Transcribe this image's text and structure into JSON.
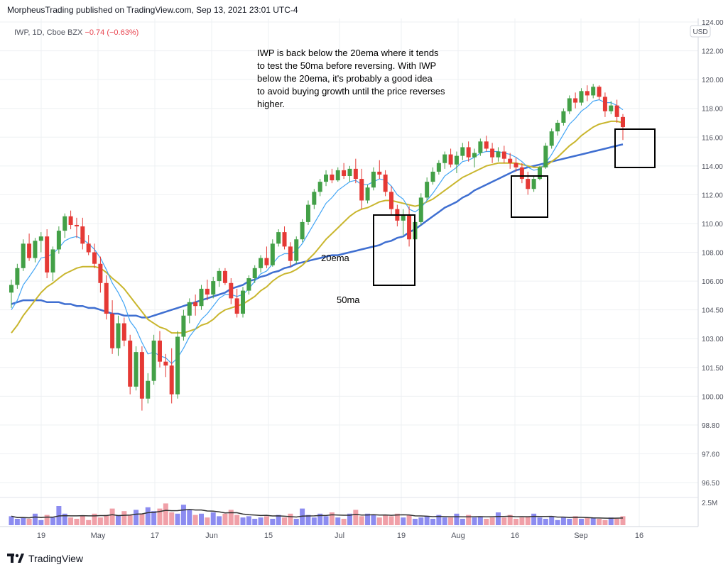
{
  "header": {
    "publisher_line": "MorpheusTrading published on TradingView.com, Sep 13, 2021 23:01 UTC-4"
  },
  "symbol": {
    "ticker_line": "IWP, 1D, Cboe BZX",
    "change": "−0.74 (−0.63%)"
  },
  "annotation": {
    "text": "IWP is back below the 20ema where it tends\nto test the 50ma before reversing.  With IWP\nbelow the 20ema, it's probably a good idea\nto avoid buying growth until the price reverses\nhigher."
  },
  "labels": {
    "ema20": "20ema",
    "ma50": "50ma"
  },
  "footer": {
    "brand": "TradingView"
  },
  "colors": {
    "up": "#43a047",
    "down": "#e53935",
    "ema_fast": "#42a5f5",
    "ema20": "#c9b62e",
    "ma50": "#3f6fd1",
    "vol_up": "#8c8cf0",
    "vol_down": "#f0a0a8",
    "grid": "#eef0f3"
  },
  "chart_data": {
    "type": "candlestick",
    "currency": "USD",
    "y_ticks": [
      "124.00",
      "122.00",
      "120.00",
      "118.00",
      "116.00",
      "114.00",
      "112.00",
      "110.00",
      "108.00",
      "106.00",
      "104.50",
      "103.00",
      "101.50",
      "100.00",
      "98.80",
      "97.60",
      "96.50"
    ],
    "y_tick_values": [
      124,
      122,
      120,
      118,
      116,
      114,
      112,
      110,
      108,
      106,
      104.5,
      103,
      101.5,
      100,
      98.8,
      97.6,
      96.5
    ],
    "x_ticks": [
      "19",
      "May",
      "17",
      "Jun",
      "15",
      "Jul",
      "19",
      "Aug",
      "16",
      "Sep",
      "16"
    ],
    "volume_tick": "2.5M",
    "candles": [
      [
        105.4,
        106.1,
        104.6,
        105.8
      ],
      [
        105.8,
        107.2,
        105.6,
        106.9
      ],
      [
        106.9,
        108.9,
        106.7,
        108.6
      ],
      [
        108.6,
        109.3,
        107.4,
        107.6
      ],
      [
        107.6,
        109.0,
        107.3,
        108.8
      ],
      [
        108.8,
        109.4,
        108.0,
        109.1
      ],
      [
        109.1,
        109.6,
        106.2,
        106.6
      ],
      [
        106.6,
        108.4,
        106.0,
        108.2
      ],
      [
        108.2,
        109.8,
        107.9,
        109.5
      ],
      [
        109.5,
        110.7,
        109.0,
        110.5
      ],
      [
        110.5,
        110.9,
        109.6,
        109.9
      ],
      [
        109.9,
        110.4,
        109.0,
        109.8
      ],
      [
        109.8,
        110.4,
        108.2,
        108.6
      ],
      [
        108.6,
        109.2,
        107.8,
        108.0
      ],
      [
        108.0,
        108.6,
        106.9,
        107.2
      ],
      [
        107.2,
        107.7,
        105.4,
        105.9
      ],
      [
        105.9,
        106.4,
        104.0,
        104.3
      ],
      [
        104.3,
        105.0,
        102.2,
        102.5
      ],
      [
        102.5,
        104.2,
        102.1,
        103.8
      ],
      [
        103.8,
        104.1,
        102.6,
        102.9
      ],
      [
        102.9,
        103.2,
        100.1,
        100.5
      ],
      [
        100.5,
        102.6,
        100.3,
        102.3
      ],
      [
        102.3,
        102.6,
        99.4,
        99.9
      ],
      [
        99.9,
        101.2,
        99.7,
        100.8
      ],
      [
        100.8,
        103.2,
        100.6,
        102.9
      ],
      [
        102.9,
        103.4,
        101.5,
        101.8
      ],
      [
        101.8,
        102.2,
        101.0,
        101.6
      ],
      [
        101.6,
        102.5,
        99.7,
        100.1
      ],
      [
        100.1,
        103.4,
        99.9,
        103.1
      ],
      [
        103.1,
        104.5,
        102.9,
        104.2
      ],
      [
        104.2,
        105.1,
        103.8,
        104.9
      ],
      [
        104.9,
        105.3,
        104.2,
        104.7
      ],
      [
        104.7,
        105.8,
        104.5,
        105.6
      ],
      [
        105.6,
        106.1,
        105.0,
        105.3
      ],
      [
        105.3,
        106.3,
        105.1,
        106.0
      ],
      [
        106.0,
        106.9,
        105.7,
        106.7
      ],
      [
        106.7,
        106.9,
        105.8,
        105.9
      ],
      [
        105.9,
        106.2,
        104.8,
        105.1
      ],
      [
        105.1,
        105.6,
        104.1,
        104.3
      ],
      [
        104.3,
        105.7,
        104.1,
        105.5
      ],
      [
        105.5,
        106.4,
        105.3,
        106.2
      ],
      [
        106.2,
        107.1,
        105.9,
        106.9
      ],
      [
        106.9,
        107.8,
        106.6,
        107.6
      ],
      [
        107.6,
        108.4,
        106.9,
        107.1
      ],
      [
        107.1,
        108.9,
        107.0,
        108.6
      ],
      [
        108.6,
        109.6,
        108.4,
        109.4
      ],
      [
        109.4,
        109.8,
        108.2,
        108.4
      ],
      [
        108.4,
        108.7,
        107.0,
        107.4
      ],
      [
        107.4,
        109.1,
        107.2,
        108.9
      ],
      [
        108.9,
        110.3,
        108.7,
        110.1
      ],
      [
        110.1,
        111.6,
        109.9,
        111.3
      ],
      [
        111.3,
        112.4,
        111.0,
        112.2
      ],
      [
        112.2,
        113.1,
        111.9,
        112.9
      ],
      [
        112.9,
        113.7,
        112.6,
        113.4
      ],
      [
        113.4,
        113.8,
        112.8,
        113.0
      ],
      [
        113.0,
        113.9,
        112.9,
        113.7
      ],
      [
        113.7,
        114.2,
        113.1,
        113.3
      ],
      [
        113.3,
        114.0,
        112.9,
        113.8
      ],
      [
        113.8,
        114.5,
        112.8,
        113.1
      ],
      [
        113.1,
        113.8,
        111.0,
        111.6
      ],
      [
        111.6,
        112.7,
        111.4,
        112.5
      ],
      [
        112.5,
        113.9,
        112.3,
        113.6
      ],
      [
        113.6,
        114.4,
        113.1,
        113.4
      ],
      [
        113.4,
        113.7,
        111.9,
        112.2
      ],
      [
        112.2,
        112.6,
        110.6,
        111.0
      ],
      [
        111.0,
        111.3,
        109.8,
        110.2
      ],
      [
        110.2,
        111.0,
        109.2,
        110.6
      ],
      [
        110.6,
        111.2,
        108.4,
        108.9
      ],
      [
        108.9,
        110.3,
        108.7,
        110.1
      ],
      [
        110.1,
        112.1,
        109.9,
        111.8
      ],
      [
        111.8,
        113.2,
        111.6,
        112.9
      ],
      [
        112.9,
        113.9,
        112.7,
        113.6
      ],
      [
        113.6,
        114.4,
        113.4,
        114.2
      ],
      [
        114.2,
        115.0,
        113.8,
        114.8
      ],
      [
        114.8,
        115.2,
        113.9,
        114.1
      ],
      [
        114.1,
        115.0,
        113.5,
        114.7
      ],
      [
        114.7,
        115.6,
        114.4,
        115.3
      ],
      [
        115.3,
        115.7,
        114.3,
        114.6
      ],
      [
        114.6,
        115.2,
        113.9,
        114.9
      ],
      [
        114.9,
        115.9,
        114.7,
        115.7
      ],
      [
        115.7,
        116.1,
        115.0,
        115.2
      ],
      [
        115.2,
        115.6,
        114.2,
        114.6
      ],
      [
        114.6,
        115.3,
        114.3,
        115.0
      ],
      [
        115.0,
        115.4,
        114.2,
        114.5
      ],
      [
        114.5,
        114.9,
        113.8,
        114.2
      ],
      [
        114.2,
        114.6,
        113.6,
        113.9
      ],
      [
        113.9,
        114.2,
        112.8,
        113.1
      ],
      [
        113.1,
        113.6,
        112.0,
        112.4
      ],
      [
        112.4,
        113.3,
        112.2,
        113.1
      ],
      [
        113.1,
        114.0,
        113.0,
        113.9
      ],
      [
        113.9,
        115.6,
        113.8,
        115.4
      ],
      [
        115.4,
        116.6,
        115.2,
        116.4
      ],
      [
        116.4,
        117.2,
        116.1,
        117.0
      ],
      [
        117.0,
        118.0,
        116.8,
        117.8
      ],
      [
        117.8,
        118.9,
        117.6,
        118.7
      ],
      [
        118.7,
        119.1,
        118.0,
        118.4
      ],
      [
        118.4,
        119.4,
        118.2,
        119.2
      ],
      [
        119.2,
        119.6,
        118.5,
        118.9
      ],
      [
        118.9,
        119.7,
        118.7,
        119.5
      ],
      [
        119.5,
        119.6,
        118.6,
        118.8
      ],
      [
        118.8,
        119.1,
        117.4,
        117.8
      ],
      [
        117.8,
        118.5,
        117.6,
        118.2
      ],
      [
        118.2,
        118.6,
        117.0,
        117.4
      ],
      [
        117.4,
        117.6,
        115.8,
        116.7
      ]
    ],
    "ema_fast": [
      104.5,
      105.0,
      105.8,
      106.3,
      106.9,
      107.6,
      107.7,
      107.9,
      108.3,
      108.8,
      109.0,
      109.1,
      108.9,
      108.6,
      108.2,
      107.6,
      106.8,
      105.9,
      105.4,
      104.8,
      103.9,
      103.5,
      102.8,
      102.2,
      102.3,
      102.1,
      102.0,
      101.7,
      102.0,
      102.5,
      103.1,
      103.5,
      104.0,
      104.3,
      104.7,
      105.1,
      105.3,
      105.3,
      105.2,
      105.3,
      105.6,
      106.0,
      106.5,
      106.7,
      107.2,
      107.7,
      107.9,
      107.9,
      108.1,
      108.6,
      109.3,
      110.0,
      110.7,
      111.4,
      111.8,
      112.3,
      112.6,
      112.9,
      113.0,
      112.7,
      112.7,
      112.9,
      113.1,
      113.0,
      112.6,
      112.0,
      111.7,
      111.0,
      110.8,
      111.1,
      111.6,
      112.1,
      112.7,
      113.3,
      113.6,
      113.9,
      114.3,
      114.4,
      114.6,
      114.9,
      115.0,
      115.0,
      115.0,
      114.9,
      114.8,
      114.6,
      114.3,
      113.9,
      113.7,
      113.8,
      114.2,
      114.8,
      115.5,
      116.2,
      116.9,
      117.3,
      117.8,
      118.1,
      118.5,
      118.6,
      118.4,
      118.4,
      118.2,
      117.9
    ],
    "ema20": [
      103.3,
      103.7,
      104.2,
      104.6,
      105.0,
      105.4,
      105.7,
      105.9,
      106.2,
      106.5,
      106.7,
      106.9,
      107.0,
      107.0,
      107.0,
      106.9,
      106.6,
      106.2,
      105.9,
      105.6,
      105.2,
      104.8,
      104.4,
      104.0,
      103.8,
      103.6,
      103.5,
      103.3,
      103.3,
      103.3,
      103.4,
      103.5,
      103.7,
      103.8,
      104.0,
      104.3,
      104.5,
      104.6,
      104.7,
      104.8,
      105.0,
      105.2,
      105.5,
      105.7,
      106.0,
      106.3,
      106.5,
      106.6,
      106.8,
      107.1,
      107.5,
      107.9,
      108.4,
      108.9,
      109.3,
      109.7,
      110.1,
      110.5,
      110.8,
      111.0,
      111.1,
      111.3,
      111.5,
      111.6,
      111.6,
      111.5,
      111.4,
      111.3,
      111.2,
      111.3,
      111.5,
      111.7,
      112.0,
      112.3,
      112.6,
      112.9,
      113.2,
      113.4,
      113.6,
      113.8,
      114.0,
      114.1,
      114.2,
      114.2,
      114.2,
      114.2,
      114.1,
      114.0,
      113.9,
      113.9,
      114.0,
      114.3,
      114.6,
      115.0,
      115.4,
      115.7,
      116.1,
      116.4,
      116.7,
      116.9,
      117.0,
      117.1,
      117.1,
      117.0
    ],
    "ma50": [
      104.8,
      104.9,
      105.0,
      105.0,
      105.0,
      105.0,
      104.9,
      104.9,
      104.9,
      104.8,
      104.8,
      104.7,
      104.7,
      104.6,
      104.6,
      104.5,
      104.4,
      104.3,
      104.3,
      104.2,
      104.2,
      104.2,
      104.1,
      104.1,
      104.2,
      104.3,
      104.4,
      104.5,
      104.6,
      104.7,
      104.8,
      104.9,
      105.0,
      105.1,
      105.2,
      105.3,
      105.4,
      105.6,
      105.7,
      105.8,
      106.0,
      106.1,
      106.3,
      106.4,
      106.6,
      106.7,
      106.9,
      107.0,
      107.2,
      107.3,
      107.4,
      107.5,
      107.6,
      107.7,
      107.8,
      107.8,
      107.9,
      108.0,
      108.1,
      108.2,
      108.3,
      108.4,
      108.5,
      108.7,
      108.8,
      109.0,
      109.1,
      109.4,
      109.6,
      109.9,
      110.2,
      110.5,
      110.8,
      111.1,
      111.3,
      111.5,
      111.8,
      112.0,
      112.3,
      112.5,
      112.7,
      112.9,
      113.1,
      113.3,
      113.5,
      113.7,
      113.8,
      113.9,
      114.0,
      114.1,
      114.2,
      114.3,
      114.4,
      114.5,
      114.6,
      114.7,
      114.8,
      114.9,
      115.0,
      115.1,
      115.2,
      115.3,
      115.4,
      115.5
    ],
    "volume": [
      0.7,
      0.5,
      0.6,
      0.5,
      0.9,
      0.4,
      0.8,
      0.6,
      1.5,
      0.9,
      0.6,
      0.5,
      0.7,
      0.4,
      0.9,
      0.6,
      0.8,
      1.3,
      0.8,
      1.1,
      0.8,
      1.2,
      0.9,
      1.4,
      1.1,
      1.3,
      1.7,
      1.0,
      0.9,
      1.6,
      1.2,
      0.8,
      0.9,
      0.6,
      1.0,
      0.7,
      0.9,
      1.2,
      0.8,
      0.6,
      0.7,
      0.5,
      0.6,
      0.7,
      0.5,
      0.8,
      0.6,
      0.9,
      0.5,
      1.3,
      0.8,
      0.6,
      0.9,
      0.7,
      1.0,
      0.6,
      0.5,
      0.9,
      1.2,
      0.7,
      0.9,
      0.8,
      0.6,
      0.8,
      0.7,
      0.9,
      0.6,
      0.8,
      0.5,
      0.6,
      0.7,
      0.5,
      0.8,
      0.6,
      0.6,
      0.9,
      0.5,
      0.8,
      0.6,
      0.7,
      0.5,
      0.6,
      1.0,
      0.6,
      0.8,
      0.5,
      0.6,
      0.7,
      0.9,
      0.6,
      0.5,
      0.7,
      0.4,
      0.6,
      0.5,
      0.7,
      0.5,
      0.6,
      0.6,
      0.5,
      0.4,
      0.6,
      0.5,
      0.7
    ]
  }
}
